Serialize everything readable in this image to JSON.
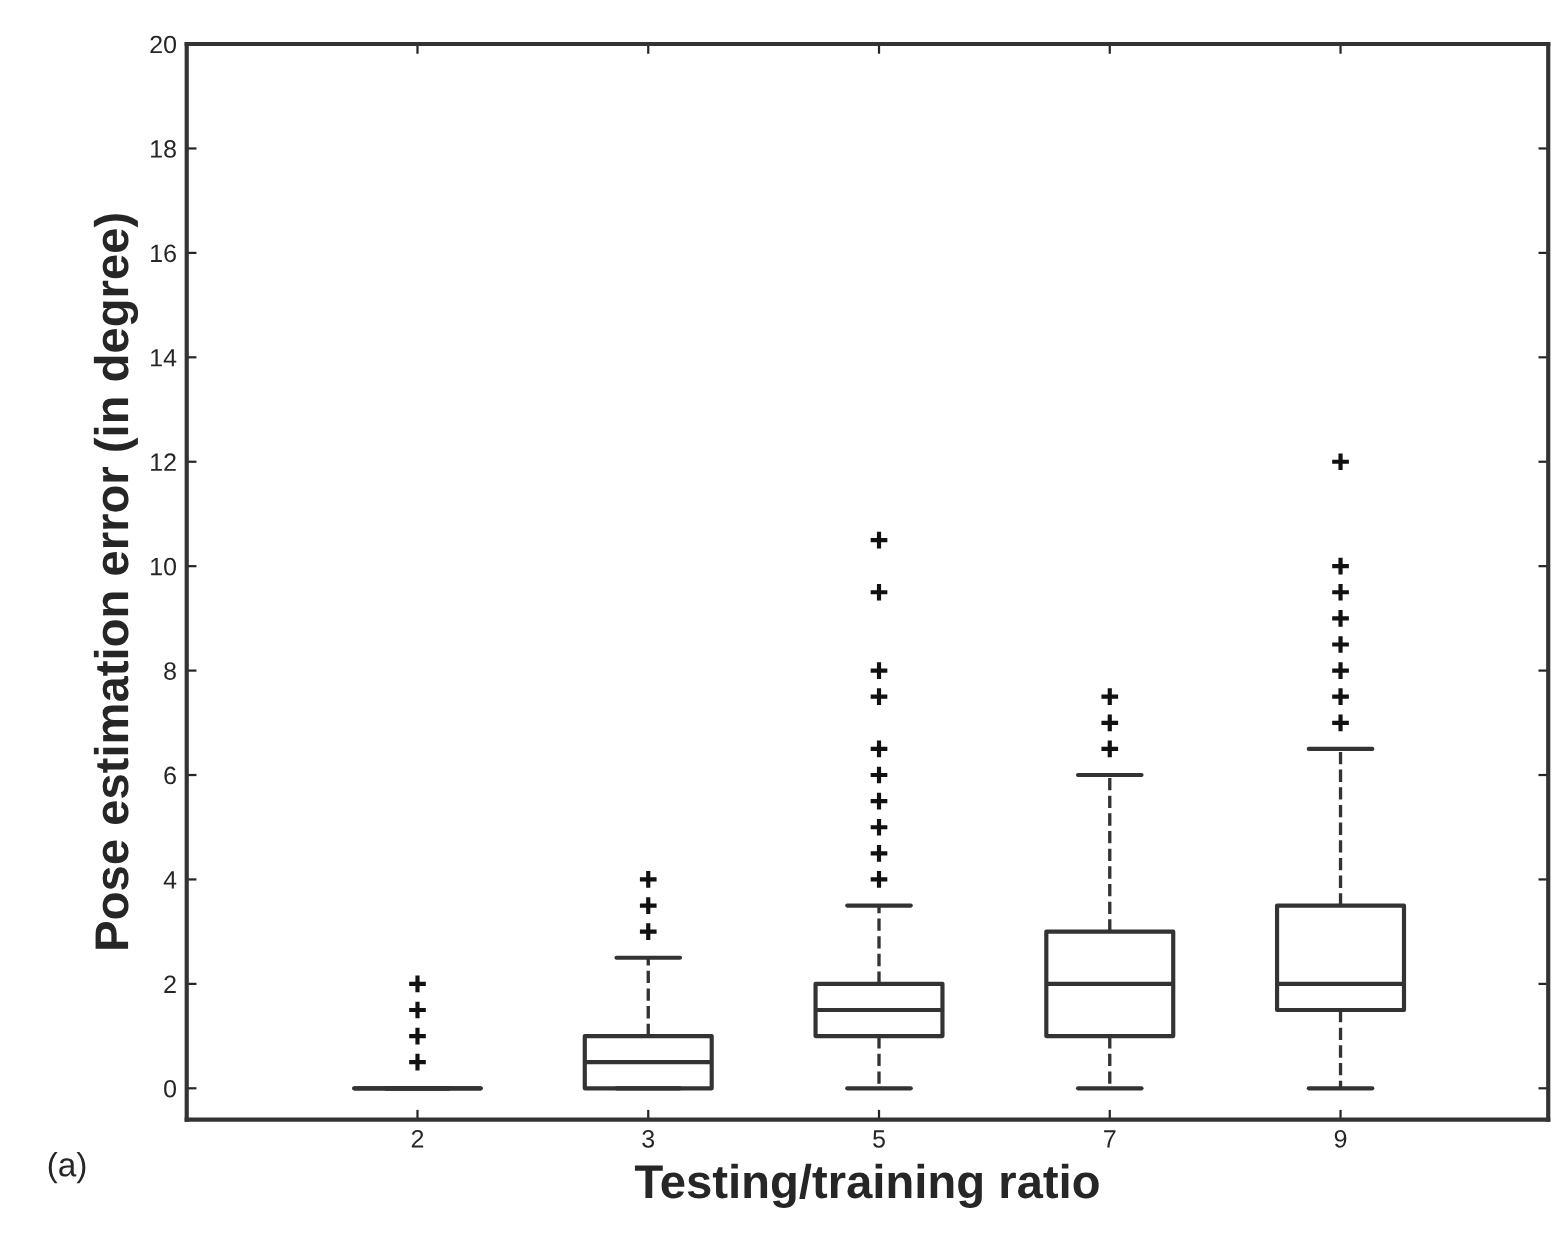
{
  "chart_data": {
    "type": "box",
    "xlabel": "Testing/training ratio",
    "ylabel": "Pose estimation error (in degree)",
    "annotations": [
      "(a)"
    ],
    "categories": [
      "2",
      "3",
      "5",
      "7",
      "9"
    ],
    "ylim": [
      -0.6,
      20
    ],
    "yticks": [
      0,
      2,
      4,
      6,
      8,
      10,
      12,
      14,
      16,
      18,
      20
    ],
    "grid": false,
    "marker": "cross",
    "line_style": "dashed",
    "boxes": [
      {
        "low": 0,
        "q1": 0,
        "median": 0,
        "q3": 0,
        "high": 0,
        "outliers": [
          0.5,
          1,
          1.5,
          2
        ]
      },
      {
        "low": 0,
        "q1": 0,
        "median": 0.5,
        "q3": 1,
        "high": 2.5,
        "outliers": [
          3,
          3.5,
          4
        ]
      },
      {
        "low": 0,
        "q1": 1,
        "median": 1.5,
        "q3": 2,
        "high": 3.5,
        "outliers": [
          4,
          4.5,
          5,
          5.5,
          6,
          6.5,
          7.5,
          8,
          9.5,
          10.5
        ]
      },
      {
        "low": 0,
        "q1": 1,
        "median": 2,
        "q3": 3,
        "high": 6,
        "outliers": [
          6.5,
          7,
          7.5
        ]
      },
      {
        "low": 0,
        "q1": 1.5,
        "median": 2,
        "q3": 3.5,
        "high": 6.5,
        "outliers": [
          7,
          7.5,
          8,
          8.5,
          9,
          9.5,
          10,
          12
        ]
      }
    ]
  }
}
